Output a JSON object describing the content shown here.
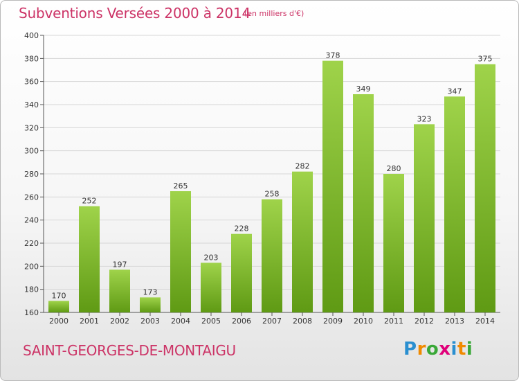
{
  "header": {
    "title": "Subventions Versées 2000 à 2014",
    "subtitle": "(en milliers d'€)"
  },
  "footer": {
    "commune": "SAINT-GEORGES-DE-MONTAIGU",
    "logo_letters": [
      "P",
      "r",
      "o",
      "x",
      "i",
      "t",
      "i"
    ],
    "logo_colors": [
      "#2a8fd0",
      "#f08a00",
      "#3aa838",
      "#e0007a",
      "#2a8fd0",
      "#f08a00",
      "#3aa838"
    ]
  },
  "colors": {
    "accent": "#cc3366",
    "bar_top": "#9fd34a",
    "bar_bottom": "#5f9a14"
  },
  "chart_data": {
    "type": "bar",
    "categories": [
      "2000",
      "2001",
      "2002",
      "2003",
      "2004",
      "2005",
      "2006",
      "2007",
      "2008",
      "2009",
      "2010",
      "2011",
      "2012",
      "2013",
      "2014"
    ],
    "values": [
      170,
      252,
      197,
      173,
      265,
      203,
      228,
      258,
      282,
      378,
      349,
      280,
      323,
      347,
      375
    ],
    "title": "Subventions Versées 2000 à 2014",
    "ylabel": "",
    "xlabel": "",
    "ylim": [
      160,
      400
    ],
    "yticks": [
      160,
      180,
      200,
      220,
      240,
      260,
      280,
      300,
      320,
      340,
      360,
      380,
      400
    ],
    "grid": true,
    "data_labels": true
  }
}
